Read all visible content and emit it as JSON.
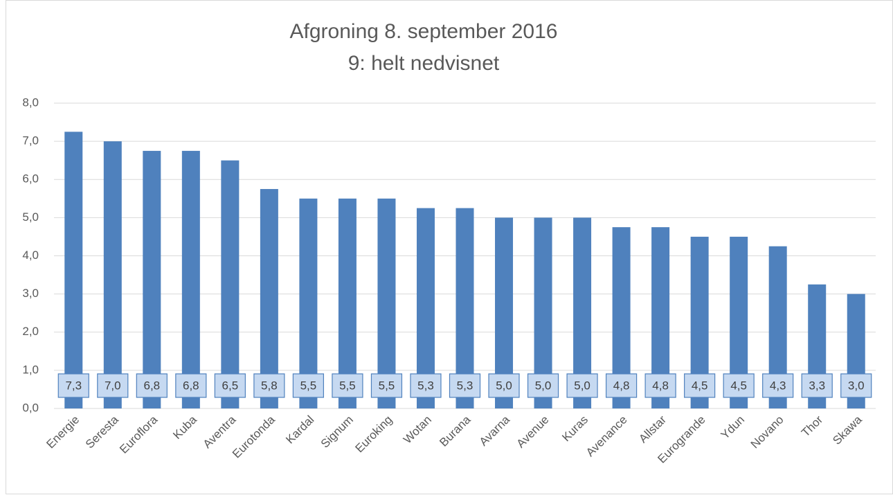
{
  "chart_data": {
    "type": "bar",
    "title": "Afgroning 8. september 2016",
    "subtitle": "9: helt nedvisnet",
    "categories": [
      "Energie",
      "Seresta",
      "Euroflora",
      "Kuba",
      "Aventra",
      "Eurotonda",
      "Kardal",
      "Signum",
      "Euroking",
      "Wotan",
      "Burana",
      "Avarna",
      "Avenue",
      "Kuras",
      "Avenance",
      "Allstar",
      "Eurogrande",
      "Ydun",
      "Novano",
      "Thor",
      "Skawa"
    ],
    "values": [
      7.25,
      7.0,
      6.75,
      6.75,
      6.5,
      5.75,
      5.5,
      5.5,
      5.5,
      5.25,
      5.25,
      5.0,
      5.0,
      5.0,
      4.75,
      4.75,
      4.5,
      4.5,
      4.25,
      3.25,
      3.0
    ],
    "value_labels": [
      "7,3",
      "7,0",
      "6,8",
      "6,8",
      "6,5",
      "5,8",
      "5,5",
      "5,5",
      "5,5",
      "5,3",
      "5,3",
      "5,0",
      "5,0",
      "5,0",
      "4,8",
      "4,8",
      "4,5",
      "4,5",
      "4,3",
      "3,3",
      "3,0"
    ],
    "color": "#4f81bd",
    "ylim": [
      0,
      8
    ],
    "yticks": [
      {
        "value": 0,
        "label": "0,0"
      },
      {
        "value": 1,
        "label": "1,0"
      },
      {
        "value": 2,
        "label": "2,0"
      },
      {
        "value": 3,
        "label": "3,0"
      },
      {
        "value": 4,
        "label": "4,0"
      },
      {
        "value": 5,
        "label": "5,0"
      },
      {
        "value": 6,
        "label": "6,0"
      },
      {
        "value": 7,
        "label": "7,0"
      },
      {
        "value": 8,
        "label": "8,0"
      }
    ],
    "grid": true
  }
}
